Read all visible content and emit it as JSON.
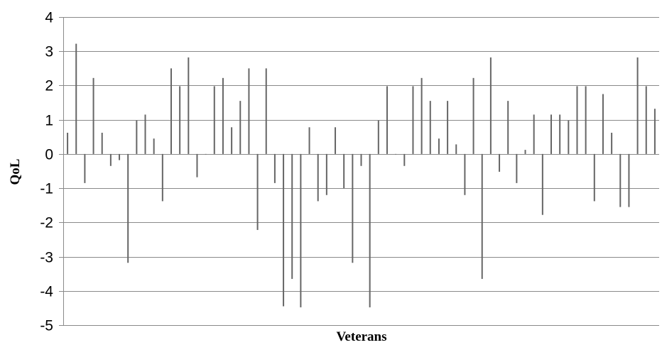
{
  "chart_data": {
    "type": "bar",
    "title": "",
    "xlabel": "Veterans",
    "ylabel": "QoL",
    "ylim": [
      -5,
      4
    ],
    "yticks": [
      "4",
      "3",
      "2",
      "1",
      "0",
      "-1",
      "-2",
      "-3",
      "-4",
      "-5"
    ],
    "grid": true,
    "legend": "none",
    "bar_color": "#666666",
    "values": [
      0.62,
      3.22,
      -0.85,
      2.22,
      0.62,
      -0.35,
      -0.18,
      -3.18,
      0.98,
      1.15,
      0.45,
      -1.38,
      2.5,
      1.98,
      2.82,
      -0.68,
      0.0,
      1.98,
      2.22,
      0.78,
      1.55,
      2.5,
      -2.22,
      2.5,
      -0.85,
      -4.45,
      -3.65,
      -4.48,
      0.78,
      -1.38,
      -1.2,
      0.78,
      -1.0,
      -3.18,
      -0.35,
      -4.48,
      0.98,
      1.98,
      0.0,
      -0.35,
      1.98,
      2.22,
      1.55,
      0.45,
      1.55,
      0.28,
      -1.2,
      2.22,
      -3.65,
      2.82,
      -0.52,
      1.55,
      -0.85,
      0.12,
      1.15,
      -1.78,
      1.15,
      1.15,
      0.98,
      1.98,
      1.98,
      -1.38,
      1.75,
      0.62,
      -1.55,
      -1.55,
      2.82,
      1.98,
      1.32
    ]
  }
}
